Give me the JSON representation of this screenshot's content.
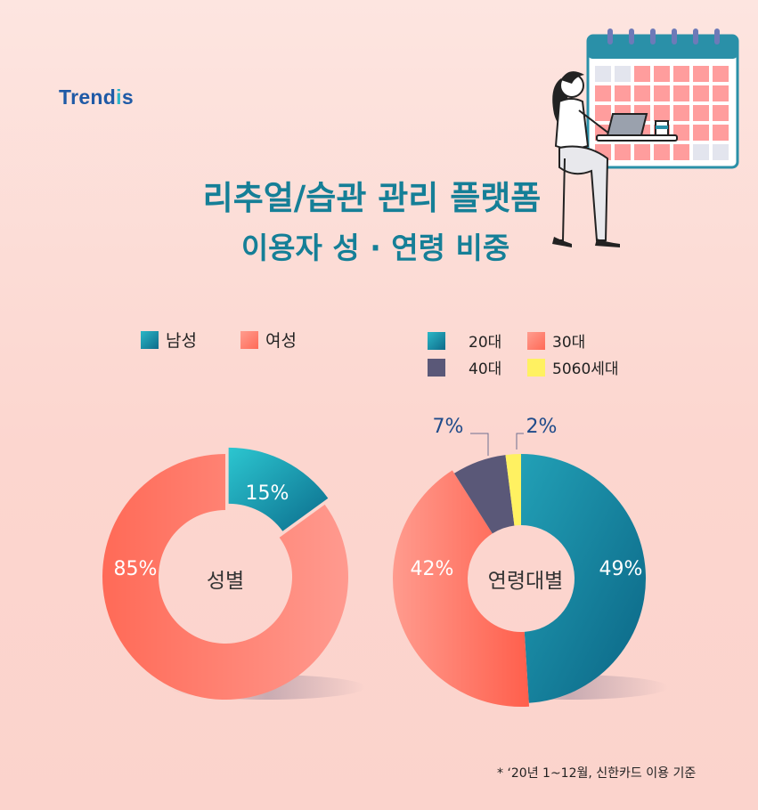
{
  "logo": {
    "text_main": "Trend",
    "text_i": "i",
    "text_s": "s"
  },
  "title": {
    "line1": "리추얼/습관 관리 플랫폼",
    "line2": "이용자 성 · 연령 비중"
  },
  "footnote": "* ‘20년 1~12월, 신한카드 이용 기준",
  "colors": {
    "male": "#16839b",
    "female": "#ff7465",
    "age20": "#137a94",
    "age30": "#ff6a57",
    "age40": "#5a5878",
    "age5060": "#fff161"
  },
  "chart_data": [
    {
      "type": "pie",
      "center_label": "성별",
      "legend": [
        "남성",
        "여성"
      ],
      "slices": [
        {
          "name": "남성",
          "value": 15,
          "label": "15%",
          "color": "#16839b"
        },
        {
          "name": "여성",
          "value": 85,
          "label": "85%",
          "color": "#ff7465"
        }
      ]
    },
    {
      "type": "pie",
      "center_label": "연령대별",
      "legend": [
        "20대",
        "30대",
        "40대",
        "5060세대"
      ],
      "slices": [
        {
          "name": "20대",
          "value": 49,
          "label": "49%",
          "color": "#137a94"
        },
        {
          "name": "30대",
          "value": 42,
          "label": "42%",
          "color": "#ff6a57"
        },
        {
          "name": "40대",
          "value": 7,
          "label": "7%",
          "color": "#5a5878"
        },
        {
          "name": "5060세대",
          "value": 2,
          "label": "2%",
          "color": "#fff161"
        }
      ]
    }
  ],
  "illustration": {
    "icon": "woman-with-laptop-and-calendar-icon"
  }
}
